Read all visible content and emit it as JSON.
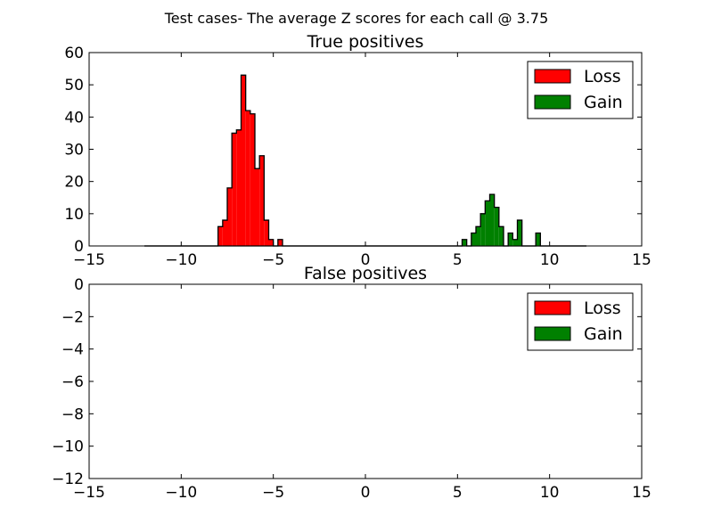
{
  "figure": {
    "suptitle": "Test cases- The average Z scores for each call @ 3.75"
  },
  "colors": {
    "loss": "#ff0000",
    "gain": "#008000",
    "axes": "#000000",
    "background": "#ffffff"
  },
  "chart_data": [
    {
      "type": "histogram",
      "title": "True positives",
      "xlim": [
        -15,
        15
      ],
      "ylim": [
        0,
        60
      ],
      "xticks": [
        "−15",
        "−10",
        "−5",
        "0",
        "5",
        "10",
        "15"
      ],
      "yticks": [
        "0",
        "10",
        "20",
        "30",
        "40",
        "50",
        "60"
      ],
      "xtick_values": [
        -15,
        -10,
        -5,
        0,
        5,
        10,
        15
      ],
      "ytick_values": [
        0,
        10,
        20,
        30,
        40,
        50,
        60
      ],
      "grid": false,
      "legend_position": "upper right",
      "range": [
        -12,
        12
      ],
      "bin_width": 0.25,
      "series": [
        {
          "name": "Loss",
          "color": "#ff0000",
          "bins": [
            {
              "x0": -8.0,
              "count": 6
            },
            {
              "x0": -7.75,
              "count": 8
            },
            {
              "x0": -7.5,
              "count": 18
            },
            {
              "x0": -7.25,
              "count": 35
            },
            {
              "x0": -7.0,
              "count": 36
            },
            {
              "x0": -6.75,
              "count": 53
            },
            {
              "x0": -6.5,
              "count": 42
            },
            {
              "x0": -6.25,
              "count": 41
            },
            {
              "x0": -6.0,
              "count": 24
            },
            {
              "x0": -5.75,
              "count": 28
            },
            {
              "x0": -5.5,
              "count": 8
            },
            {
              "x0": -5.25,
              "count": 2
            },
            {
              "x0": -5.0,
              "count": 0
            },
            {
              "x0": -4.75,
              "count": 2
            }
          ]
        },
        {
          "name": "Gain",
          "color": "#008000",
          "bins": [
            {
              "x0": 5.25,
              "count": 2
            },
            {
              "x0": 5.5,
              "count": 0
            },
            {
              "x0": 5.75,
              "count": 4
            },
            {
              "x0": 6.0,
              "count": 6
            },
            {
              "x0": 6.25,
              "count": 10
            },
            {
              "x0": 6.5,
              "count": 14
            },
            {
              "x0": 6.75,
              "count": 16
            },
            {
              "x0": 7.0,
              "count": 12
            },
            {
              "x0": 7.25,
              "count": 6
            },
            {
              "x0": 7.5,
              "count": 0
            },
            {
              "x0": 7.75,
              "count": 4
            },
            {
              "x0": 8.0,
              "count": 2
            },
            {
              "x0": 8.25,
              "count": 8
            },
            {
              "x0": 8.5,
              "count": 0
            },
            {
              "x0": 8.75,
              "count": 0
            },
            {
              "x0": 9.0,
              "count": 0
            },
            {
              "x0": 9.25,
              "count": 4
            }
          ]
        }
      ]
    },
    {
      "type": "histogram",
      "title": "False positives",
      "xlim": [
        -15,
        15
      ],
      "ylim": [
        -12,
        0
      ],
      "xticks": [
        "−15",
        "−10",
        "−5",
        "0",
        "5",
        "10",
        "15"
      ],
      "yticks": [
        "0",
        "−2",
        "−4",
        "−6",
        "−8",
        "−10",
        "−12"
      ],
      "xtick_values": [
        -15,
        -10,
        -5,
        0,
        5,
        10,
        15
      ],
      "ytick_values": [
        0,
        -2,
        -4,
        -6,
        -8,
        -10,
        -12
      ],
      "grid": false,
      "legend_position": "upper right",
      "series": [
        {
          "name": "Loss",
          "color": "#ff0000",
          "bins": []
        },
        {
          "name": "Gain",
          "color": "#008000",
          "bins": []
        }
      ]
    }
  ]
}
